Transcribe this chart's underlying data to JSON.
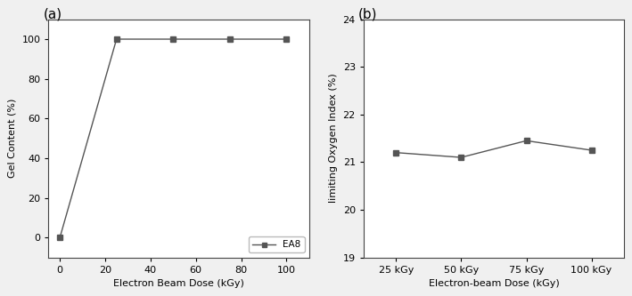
{
  "chart_a": {
    "x": [
      0,
      25,
      50,
      75,
      100
    ],
    "y": [
      0,
      100,
      100,
      100,
      100
    ],
    "xlabel": "Electron Beam Dose (kGy)",
    "ylabel": "Gel Content (%)",
    "xlim": [
      -5,
      110
    ],
    "ylim": [
      -10,
      110
    ],
    "xticks": [
      0,
      20,
      40,
      60,
      80,
      100
    ],
    "yticks": [
      0,
      20,
      40,
      60,
      80,
      100
    ],
    "label": "EA8",
    "panel_label": "(a)",
    "marker": "s",
    "color": "#555555",
    "linestyle": "-"
  },
  "chart_b": {
    "x": [
      0,
      1,
      2,
      3
    ],
    "y": [
      21.2,
      21.1,
      21.45,
      21.25
    ],
    "xtick_labels": [
      "25 kGy",
      "50 kGy",
      "75 kGy",
      "100 kGy"
    ],
    "xlabel": "Electron-beam Dose (kGy)",
    "ylabel": "limiting Oxygen Index (%)",
    "ylim": [
      19,
      24
    ],
    "yticks": [
      19,
      20,
      21,
      22,
      23,
      24
    ],
    "panel_label": "(b)",
    "marker": "s",
    "color": "#555555",
    "linestyle": "-"
  },
  "fig_width": 7.09,
  "fig_height": 3.33,
  "dpi": 100,
  "bg_color": "#f0f0f0"
}
